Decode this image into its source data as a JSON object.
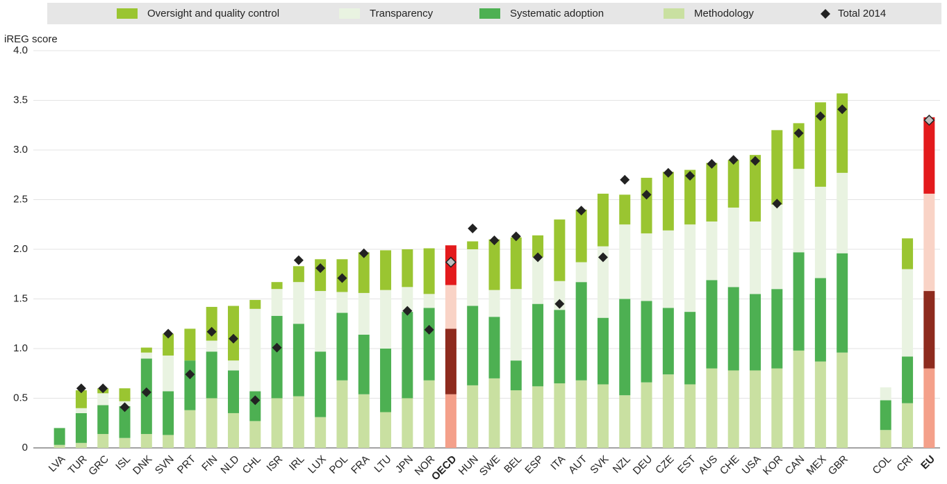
{
  "chart_data": {
    "type": "stacked-bar",
    "y_label": "iREG score",
    "categories": [
      "LVA",
      "TUR",
      "GRC",
      "ISL",
      "DNK",
      "SVN",
      "PRT",
      "FIN",
      "NLD",
      "CHL",
      "ISR",
      "IRL",
      "LUX",
      "POL",
      "FRA",
      "LTU",
      "JPN",
      "NOR",
      "OECD",
      "HUN",
      "SWE",
      "BEL",
      "ESP",
      "ITA",
      "AUT",
      "SVK",
      "NZL",
      "DEU",
      "CZE",
      "EST",
      "AUS",
      "CHE",
      "USA",
      "KOR",
      "CAN",
      "MEX",
      "GBR",
      null,
      "COL",
      "CRI",
      "EU"
    ],
    "series": [
      {
        "name": "Oversight and quality control",
        "color": "#9ac531",
        "highlight_color": "#e31a1c",
        "values": [
          0,
          0.18,
          0.05,
          0.13,
          0.05,
          0.22,
          0.32,
          0.34,
          0.55,
          0.09,
          0.07,
          0.16,
          0.32,
          0.33,
          0.41,
          0.4,
          0.38,
          0.46,
          0.4,
          0.08,
          0.51,
          0.52,
          0.22,
          0.62,
          0.53,
          0.53,
          0.3,
          0.56,
          0.59,
          0.55,
          0.59,
          0.48,
          0.67,
          0.75,
          0.46,
          0.85,
          0.8,
          null,
          0,
          0.31,
          0.77
        ]
      },
      {
        "name": "Transparency",
        "color": "#e9f3e1",
        "highlight_color": "#f9d3c6",
        "values": [
          0,
          0.05,
          0.12,
          0.05,
          0.06,
          0.36,
          0,
          0.11,
          0.1,
          0.83,
          0.27,
          0.42,
          0.61,
          0.21,
          0.42,
          0.59,
          0.25,
          0.14,
          0.44,
          0.57,
          0.27,
          0.72,
          0.47,
          0.29,
          0.2,
          0.72,
          0.75,
          0.68,
          0.78,
          0.88,
          0.59,
          0.8,
          0.73,
          0.85,
          0.84,
          0.92,
          0.81,
          null,
          0.13,
          0.88,
          0.98
        ]
      },
      {
        "name": "Systematic adoption",
        "color": "#4db052",
        "highlight_color": "#8e2b1e",
        "values": [
          0.17,
          0.3,
          0.29,
          0.32,
          0.76,
          0.44,
          0.5,
          0.47,
          0.43,
          0.3,
          0.83,
          0.73,
          0.66,
          0.68,
          0.6,
          0.64,
          0.87,
          0.73,
          0.66,
          0.8,
          0.62,
          0.3,
          0.83,
          0.74,
          0.99,
          0.67,
          0.97,
          0.82,
          0.67,
          0.73,
          0.89,
          0.84,
          0.77,
          0.8,
          0.99,
          0.84,
          1.0,
          null,
          0.3,
          0.47,
          0.78
        ]
      },
      {
        "name": "Methodology",
        "color": "#c9e0a1",
        "highlight_color": "#f4a08a",
        "values": [
          0.03,
          0.05,
          0.14,
          0.1,
          0.14,
          0.13,
          0.38,
          0.5,
          0.35,
          0.27,
          0.5,
          0.52,
          0.31,
          0.68,
          0.54,
          0.36,
          0.5,
          0.68,
          0.54,
          0.63,
          0.7,
          0.58,
          0.62,
          0.65,
          0.68,
          0.64,
          0.53,
          0.66,
          0.74,
          0.64,
          0.8,
          0.78,
          0.78,
          0.8,
          0.98,
          0.87,
          0.96,
          null,
          0.18,
          0.45,
          0.8
        ]
      }
    ],
    "markers": {
      "name": "Total 2014",
      "color": "#222222",
      "highlight_color": "#bdbdbd",
      "values": [
        null,
        0.6,
        0.6,
        0.41,
        0.56,
        1.15,
        0.74,
        1.17,
        1.1,
        0.48,
        1.01,
        1.89,
        1.81,
        1.71,
        1.96,
        null,
        1.38,
        1.19,
        1.87,
        2.21,
        2.09,
        2.13,
        1.92,
        1.45,
        2.39,
        1.92,
        2.7,
        2.55,
        2.77,
        2.74,
        2.86,
        2.9,
        2.89,
        2.46,
        3.17,
        3.34,
        3.41,
        null,
        null,
        null,
        3.3
      ]
    },
    "highlighted": [
      "OECD",
      "EU"
    ],
    "ylim": [
      0,
      4
    ],
    "yticks": [
      0,
      0.5,
      {
        "value": 1,
        "label": "1.0"
      },
      1.5,
      {
        "value": 2,
        "label": "2.0"
      },
      2.5,
      {
        "value": 3,
        "label": "3.0"
      },
      3.5,
      {
        "value": 4,
        "label": "4.0"
      }
    ],
    "grid": true
  }
}
